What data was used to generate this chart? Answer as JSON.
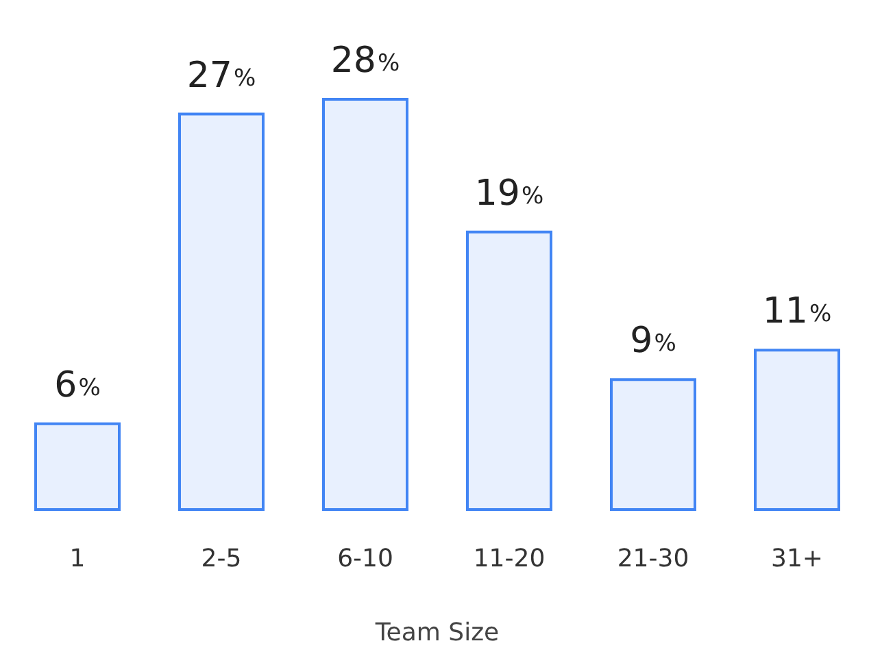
{
  "chart_data": {
    "type": "bar",
    "xlabel": "Team Size",
    "categories": [
      "1",
      "2-5",
      "6-10",
      "11-20",
      "21-30",
      "31+"
    ],
    "values": [
      6,
      27,
      28,
      19,
      9,
      11
    ],
    "value_labels": [
      "6%",
      "27%",
      "28%",
      "19%",
      "9%",
      "11%"
    ],
    "color": "#e8f0fe"
  }
}
